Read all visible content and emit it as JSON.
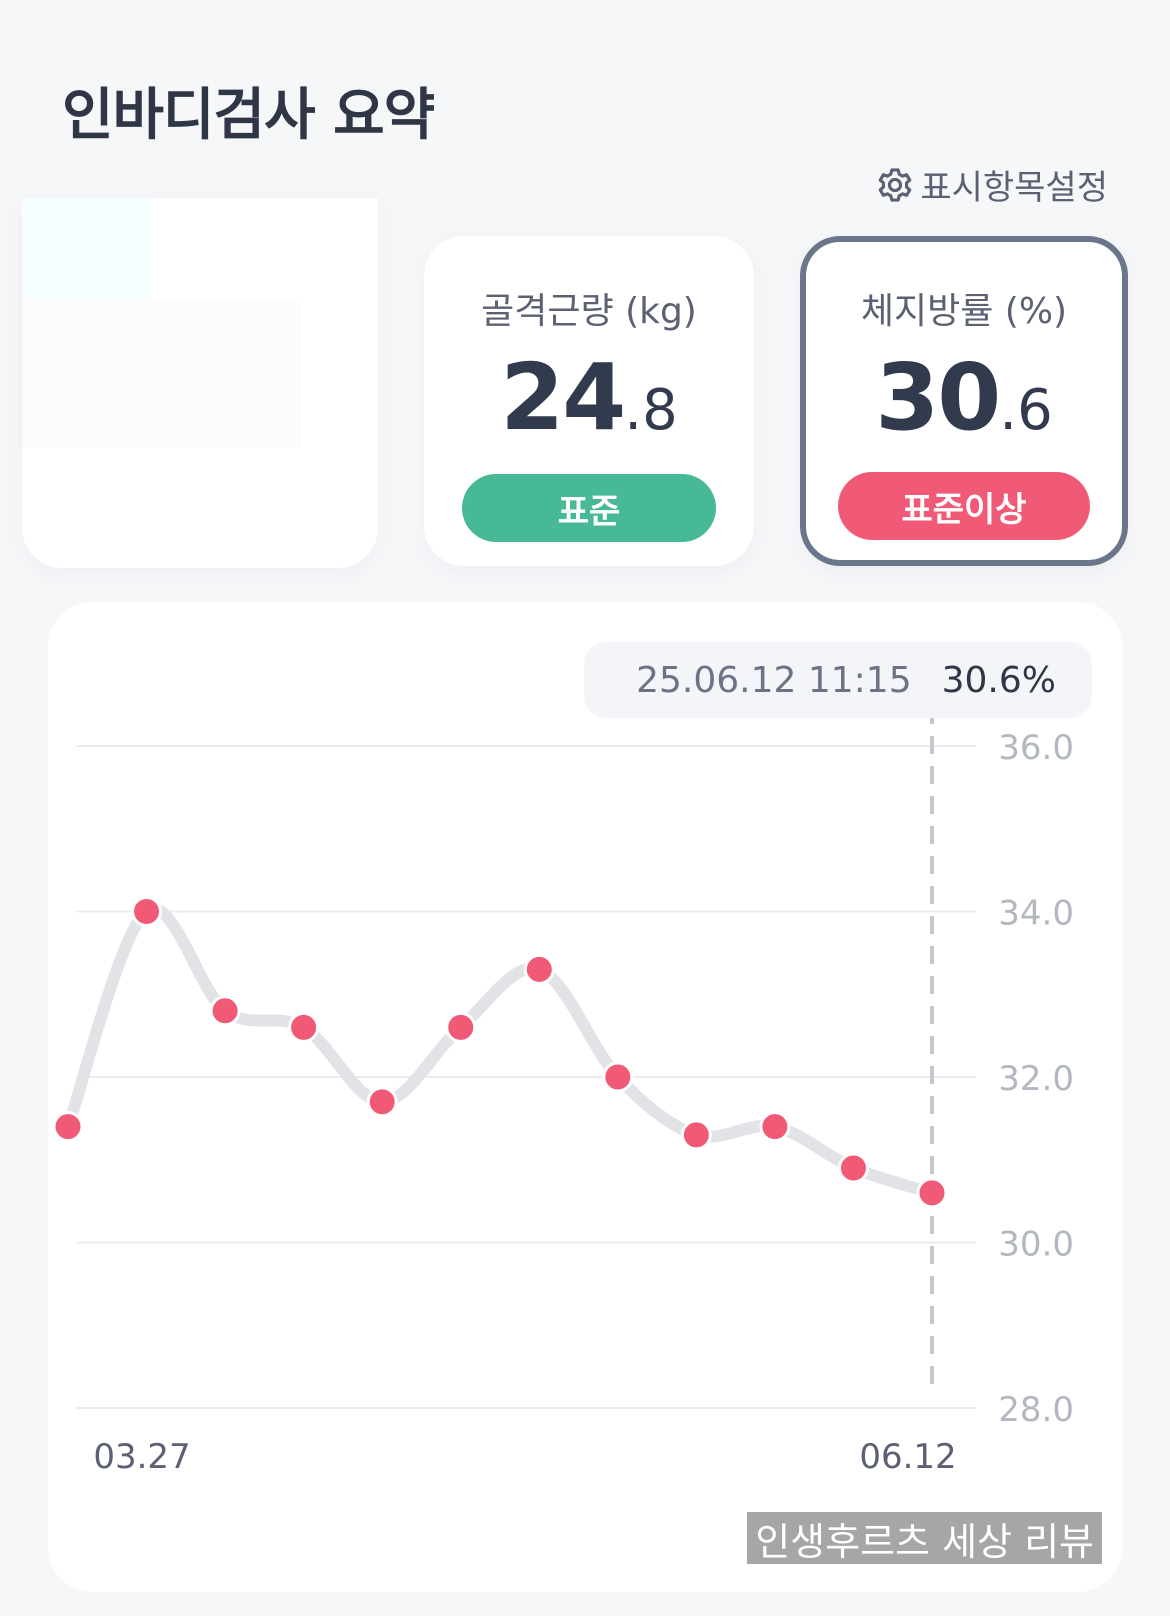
{
  "header": {
    "title": "인바디검사 요약",
    "settings_label": "표시항목설정",
    "settings_icon": "gear-icon"
  },
  "cards": [
    {
      "label": "골격근량 (kg)",
      "int": "24",
      "dec": ".8",
      "status": "표준",
      "status_color": "#47b997"
    },
    {
      "label": "체지방률 (%)",
      "int": "30",
      "dec": ".6",
      "status": "표준이상",
      "status_color": "#f05a76",
      "selected": true
    }
  ],
  "tooltip": {
    "date": "25.06.12 11:15",
    "value": "30.6%"
  },
  "watermark": "인생후르츠 세상 리뷰",
  "chart_data": {
    "type": "line",
    "x_labels": [
      "03.27",
      "06.12"
    ],
    "values": [
      31.4,
      34.0,
      32.8,
      32.6,
      31.7,
      32.6,
      33.3,
      32.0,
      31.3,
      31.4,
      30.9,
      30.6
    ],
    "yticks": [
      "36.0",
      "34.0",
      "32.0",
      "30.0",
      "28.0"
    ],
    "ylim": [
      28.0,
      36.0
    ],
    "selected_index": 11,
    "line_color": "#e2e3e7",
    "point_color": "#f05a76",
    "grid": true
  }
}
